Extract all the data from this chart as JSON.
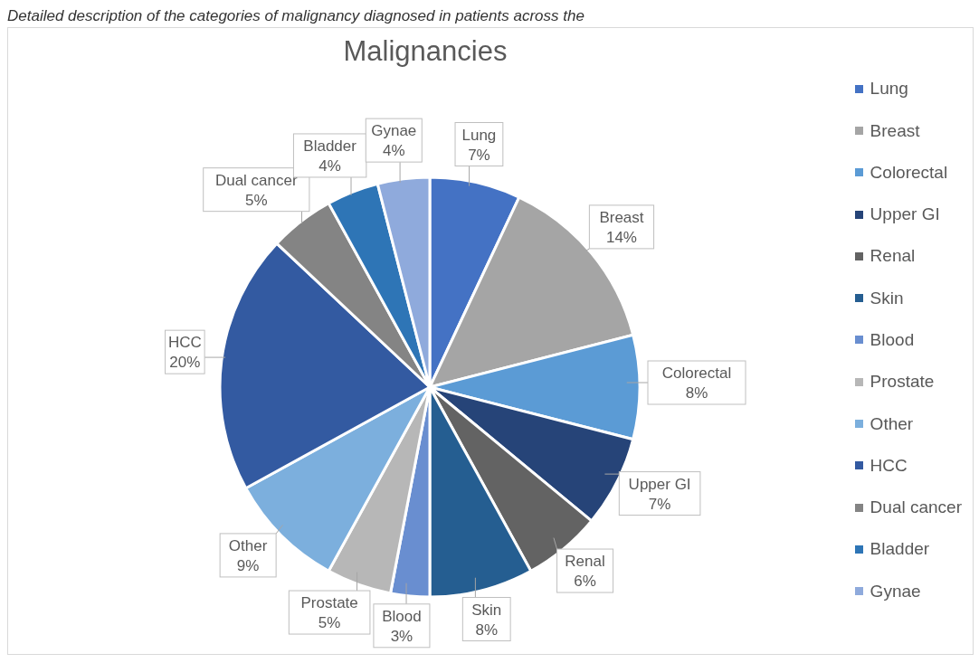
{
  "chart_data": {
    "type": "pie",
    "title": "Malignancies",
    "annotations": [
      "Detailed description of the categories of malignancy diagnosed in patients across the"
    ],
    "categories": [
      "Lung",
      "Breast",
      "Colorectal",
      "Upper GI",
      "Renal",
      "Skin",
      "Blood",
      "Prostate",
      "Other",
      "HCC",
      "Dual cancer",
      "Bladder",
      "Gynae"
    ],
    "values": [
      7,
      14,
      8,
      7,
      6,
      8,
      3,
      5,
      9,
      20,
      5,
      4,
      4
    ],
    "value_labels": [
      "7%",
      "14%",
      "8%",
      "7%",
      "6%",
      "8%",
      "3%",
      "5%",
      "9%",
      "20%",
      "5%",
      "4%",
      "4%"
    ],
    "colors": [
      "#4472c4",
      "#a5a5a5",
      "#5b9bd5",
      "#264478",
      "#636363",
      "#255e91",
      "#698ed0",
      "#b7b7b7",
      "#7cafdd",
      "#335aa1",
      "#848484",
      "#2e75b6",
      "#8faadc"
    ],
    "legend": "right"
  }
}
